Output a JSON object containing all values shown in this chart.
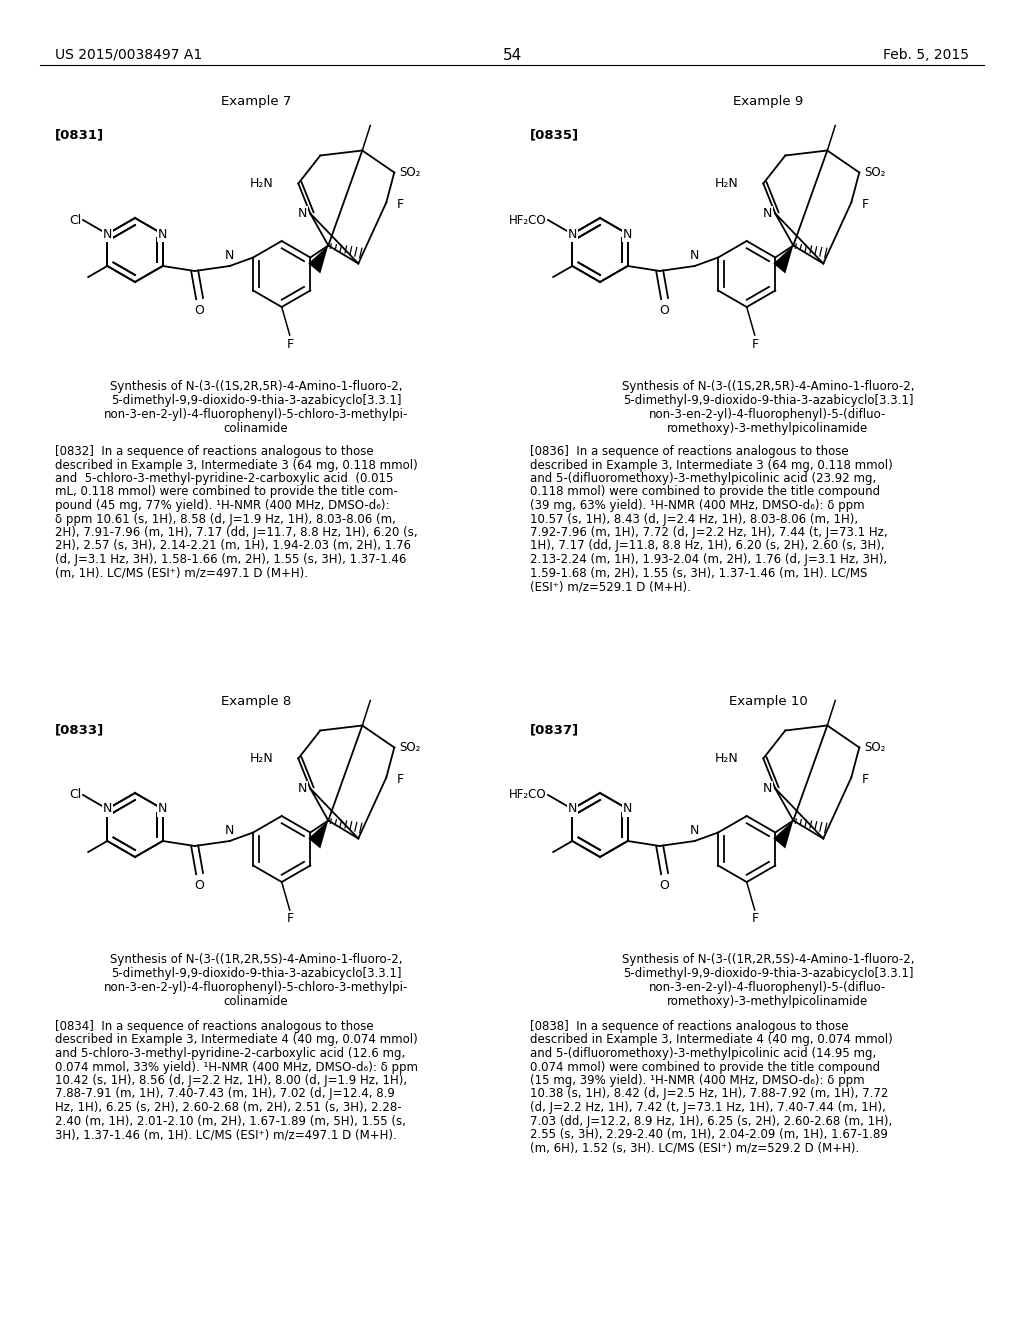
{
  "bg": "#ffffff",
  "header_left": "US 2015/0038497 A1",
  "header_right": "Feb. 5, 2015",
  "page_num": "54",
  "ex7_title": "Example 7",
  "ex8_title": "Example 8",
  "ex9_title": "Example 9",
  "ex10_title": "Example 10",
  "tag7": "[0831]",
  "tag8": "[0833]",
  "tag9": "[0835]",
  "tag10": "[0837]",
  "synth7_lines": [
    "Synthesis of N-(3-((1S,2R,5R)-4-Amino-1-fluoro-2,",
    "5-dimethyl-9,9-dioxido-9-thia-3-azabicyclo[3.3.1]",
    "non-3-en-2-yl)-4-fluorophenyl)-5-chloro-3-methylpi-",
    "colinamide"
  ],
  "synth8_lines": [
    "Synthesis of N-(3-((1R,2R,5S)-4-Amino-1-fluoro-2,",
    "5-dimethyl-9,9-dioxido-9-thia-3-azabicyclo[3.3.1]",
    "non-3-en-2-yl)-4-fluorophenyl)-5-chloro-3-methylpi-",
    "colinamide"
  ],
  "synth9_lines": [
    "Synthesis of N-(3-((1S,2R,5R)-4-Amino-1-fluoro-2,",
    "5-dimethyl-9,9-dioxido-9-thia-3-azabicyclo[3.3.1]",
    "non-3-en-2-yl)-4-fluorophenyl)-5-(difluo-",
    "romethoxy)-3-methylpicolinamide"
  ],
  "synth10_lines": [
    "Synthesis of N-(3-((1R,2R,5S)-4-Amino-1-fluoro-2,",
    "5-dimethyl-9,9-dioxido-9-thia-3-azabicyclo[3.3.1]",
    "non-3-en-2-yl)-4-fluorophenyl)-5-(difluo-",
    "romethoxy)-3-methylpicolinamide"
  ],
  "p832_lines": [
    "[0832]  In a sequence of reactions analogous to those",
    "described in Example 3, Intermediate 3 (64 mg, 0.118 mmol)",
    "and  5-chloro-3-methyl-pyridine-2-carboxylic acid  (0.015",
    "mL, 0.118 mmol) were combined to provide the title com-",
    "pound (45 mg, 77% yield). ¹H-NMR (400 MHz, DMSO-d₆):",
    "δ ppm 10.61 (s, 1H), 8.58 (d, J=1.9 Hz, 1H), 8.03-8.06 (m,",
    "2H), 7.91-7.96 (m, 1H), 7.17 (dd, J=11.7, 8.8 Hz, 1H), 6.20 (s,",
    "2H), 2.57 (s, 3H), 2.14-2.21 (m, 1H), 1.94-2.03 (m, 2H), 1.76",
    "(d, J=3.1 Hz, 3H), 1.58-1.66 (m, 2H), 1.55 (s, 3H), 1.37-1.46",
    "(m, 1H). LC/MS (ESI⁺) m/z=497.1 D (M+H)."
  ],
  "p836_lines": [
    "[0836]  In a sequence of reactions analogous to those",
    "described in Example 3, Intermediate 3 (64 mg, 0.118 mmol)",
    "and 5-(difluoromethoxy)-3-methylpicolinic acid (23.92 mg,",
    "0.118 mmol) were combined to provide the title compound",
    "(39 mg, 63% yield). ¹H-NMR (400 MHz, DMSO-d₆): δ ppm",
    "10.57 (s, 1H), 8.43 (d, J=2.4 Hz, 1H), 8.03-8.06 (m, 1H),",
    "7.92-7.96 (m, 1H), 7.72 (d, J=2.2 Hz, 1H), 7.44 (t, J=73.1 Hz,",
    "1H), 7.17 (dd, J=11.8, 8.8 Hz, 1H), 6.20 (s, 2H), 2.60 (s, 3H),",
    "2.13-2.24 (m, 1H), 1.93-2.04 (m, 2H), 1.76 (d, J=3.1 Hz, 3H),",
    "1.59-1.68 (m, 2H), 1.55 (s, 3H), 1.37-1.46 (m, 1H). LC/MS",
    "(ESI⁺) m/z=529.1 D (M+H)."
  ],
  "p834_lines": [
    "[0834]  In a sequence of reactions analogous to those",
    "described in Example 3, Intermediate 4 (40 mg, 0.074 mmol)",
    "and 5-chloro-3-methyl-pyridine-2-carboxylic acid (12.6 mg,",
    "0.074 mmol, 33% yield). ¹H-NMR (400 MHz, DMSO-d₆): δ ppm",
    "10.42 (s, 1H), 8.56 (d, J=2.2 Hz, 1H), 8.00 (d, J=1.9 Hz, 1H),",
    "7.88-7.91 (m, 1H), 7.40-7.43 (m, 1H), 7.02 (d, J=12.4, 8.9",
    "Hz, 1H), 6.25 (s, 2H), 2.60-2.68 (m, 2H), 2.51 (s, 3H), 2.28-",
    "2.40 (m, 1H), 2.01-2.10 (m, 2H), 1.67-1.89 (m, 5H), 1.55 (s,",
    "3H), 1.37-1.46 (m, 1H). LC/MS (ESI⁺) m/z=497.1 D (M+H)."
  ],
  "p838_lines": [
    "[0838]  In a sequence of reactions analogous to those",
    "described in Example 3, Intermediate 4 (40 mg, 0.074 mmol)",
    "and 5-(difluoromethoxy)-3-methylpicolinic acid (14.95 mg,",
    "0.074 mmol) were combined to provide the title compound",
    "(15 mg, 39% yield). ¹H-NMR (400 MHz, DMSO-d₆): δ ppm",
    "10.38 (s, 1H), 8.42 (d, J=2.5 Hz, 1H), 7.88-7.92 (m, 1H), 7.72",
    "(d, J=2.2 Hz, 1H), 7.42 (t, J=73.1 Hz, 1H), 7.40-7.44 (m, 1H),",
    "7.03 (dd, J=12.2, 8.9 Hz, 1H), 6.25 (s, 2H), 2.60-2.68 (m, 1H),",
    "2.55 (s, 3H), 2.29-2.40 (m, 1H), 2.04-2.09 (m, 1H), 1.67-1.89",
    "(m, 6H), 1.52 (s, 3H). LC/MS (ESI⁺) m/z=529.2 D (M+H)."
  ]
}
